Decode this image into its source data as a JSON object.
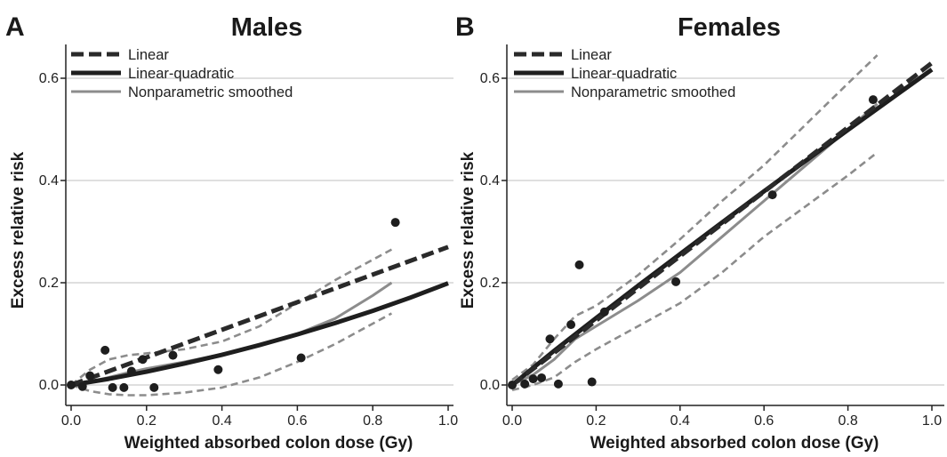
{
  "panels": [
    {
      "letter": "A",
      "title": "Males",
      "xlabel": "Weighted absorbed colon dose (Gy)",
      "ylabel": "Excess relative risk",
      "legend": [
        "Linear",
        "Linear-quadratic",
        "Nonparametric smoothed"
      ]
    },
    {
      "letter": "B",
      "title": "Females",
      "xlabel": "Weighted absorbed colon dose (Gy)",
      "ylabel": "Excess relative risk",
      "legend": [
        "Linear",
        "Linear-quadratic",
        "Nonparametric smoothed"
      ]
    }
  ],
  "colors": {
    "linear": "#2a2a2a",
    "linear_quadratic": "#1e1e1e",
    "smoothed": "#8c8c8c",
    "confidence_band": "#8c8c8c",
    "points": "#1e1e1e",
    "gridline": "#cccccc"
  },
  "chart_data": [
    {
      "type": "line",
      "title": "Males",
      "xlabel": "Weighted absorbed colon dose (Gy)",
      "ylabel": "Excess relative risk",
      "xlim": [
        -0.01,
        1.0
      ],
      "ylim": [
        -0.04,
        0.66
      ],
      "xticks": [
        "0.0",
        "0.2",
        "0.4",
        "0.6",
        "0.8",
        "1.0"
      ],
      "yticks": [
        "0.0",
        "0.2",
        "0.4",
        "0.6"
      ],
      "grid": "horizontal",
      "legend_position": "top-left",
      "points": [
        [
          0.0,
          0.0
        ],
        [
          0.03,
          -0.003
        ],
        [
          0.05,
          0.018
        ],
        [
          0.09,
          0.068
        ],
        [
          0.11,
          -0.005
        ],
        [
          0.14,
          -0.005
        ],
        [
          0.16,
          0.027
        ],
        [
          0.19,
          0.05
        ],
        [
          0.22,
          -0.005
        ],
        [
          0.27,
          0.058
        ],
        [
          0.39,
          0.03
        ],
        [
          0.61,
          0.053
        ],
        [
          0.86,
          0.318
        ]
      ],
      "series": [
        {
          "name": "Linear",
          "style": "dashed-thick",
          "x": [
            0.0,
            1.0
          ],
          "y": [
            0.0,
            0.27
          ]
        },
        {
          "name": "Linear-quadratic",
          "style": "solid-thick",
          "x": [
            0.0,
            0.1,
            0.2,
            0.3,
            0.4,
            0.5,
            0.6,
            0.7,
            0.8,
            0.9,
            1.0
          ],
          "y": [
            0.0,
            0.012,
            0.026,
            0.042,
            0.059,
            0.078,
            0.099,
            0.121,
            0.145,
            0.171,
            0.199
          ]
        },
        {
          "name": "Nonparametric smoothed",
          "style": "solid-gray",
          "x": [
            0.0,
            0.05,
            0.1,
            0.15,
            0.2,
            0.3,
            0.4,
            0.5,
            0.6,
            0.7,
            0.8,
            0.85
          ],
          "y": [
            0.0,
            0.006,
            0.015,
            0.024,
            0.032,
            0.045,
            0.06,
            0.078,
            0.1,
            0.13,
            0.175,
            0.2
          ]
        },
        {
          "name": "",
          "style": "dashed-gray",
          "x": [
            0.0,
            0.05,
            0.1,
            0.15,
            0.2,
            0.3,
            0.4,
            0.5,
            0.6,
            0.7,
            0.8,
            0.85
          ],
          "y": [
            0.0,
            0.03,
            0.05,
            0.058,
            0.062,
            0.07,
            0.085,
            0.115,
            0.16,
            0.205,
            0.245,
            0.265
          ]
        },
        {
          "name": "",
          "style": "dashed-gray",
          "x": [
            0.0,
            0.05,
            0.1,
            0.15,
            0.2,
            0.3,
            0.4,
            0.5,
            0.6,
            0.7,
            0.8,
            0.85
          ],
          "y": [
            0.0,
            -0.012,
            -0.018,
            -0.02,
            -0.02,
            -0.015,
            -0.005,
            0.015,
            0.045,
            0.08,
            0.12,
            0.14
          ]
        }
      ]
    },
    {
      "type": "line",
      "title": "Females",
      "xlabel": "Weighted absorbed colon dose (Gy)",
      "ylabel": "Excess relative risk",
      "xlim": [
        -0.01,
        1.0
      ],
      "ylim": [
        -0.04,
        0.66
      ],
      "xticks": [
        "0.0",
        "0.2",
        "0.4",
        "0.6",
        "0.8",
        "1.0"
      ],
      "yticks": [
        "0.0",
        "0.2",
        "0.4",
        "0.6"
      ],
      "grid": "horizontal",
      "legend_position": "top-left",
      "points": [
        [
          0.0,
          0.0
        ],
        [
          0.03,
          0.002
        ],
        [
          0.05,
          0.012
        ],
        [
          0.07,
          0.014
        ],
        [
          0.09,
          0.09
        ],
        [
          0.11,
          0.002
        ],
        [
          0.14,
          0.118
        ],
        [
          0.16,
          0.235
        ],
        [
          0.19,
          0.006
        ],
        [
          0.22,
          0.143
        ],
        [
          0.39,
          0.202
        ],
        [
          0.62,
          0.372
        ],
        [
          0.86,
          0.558
        ]
      ],
      "series": [
        {
          "name": "Linear",
          "style": "dashed-thick",
          "x": [
            0.0,
            1.0
          ],
          "y": [
            0.0,
            0.63
          ]
        },
        {
          "name": "Linear-quadratic",
          "style": "solid-thick",
          "x": [
            0.0,
            0.1,
            0.2,
            0.3,
            0.4,
            0.5,
            0.6,
            0.7,
            0.8,
            0.9,
            1.0
          ],
          "y": [
            0.0,
            0.067,
            0.131,
            0.194,
            0.256,
            0.318,
            0.379,
            0.439,
            0.499,
            0.558,
            0.617
          ]
        },
        {
          "name": "Nonparametric smoothed",
          "style": "solid-gray",
          "x": [
            0.0,
            0.05,
            0.1,
            0.15,
            0.2,
            0.3,
            0.4,
            0.5,
            0.6,
            0.7,
            0.8,
            0.87
          ],
          "y": [
            0.0,
            0.02,
            0.05,
            0.09,
            0.115,
            0.165,
            0.22,
            0.29,
            0.36,
            0.43,
            0.5,
            0.55
          ]
        },
        {
          "name": "",
          "style": "dashed-gray",
          "x": [
            0.0,
            0.05,
            0.1,
            0.15,
            0.2,
            0.3,
            0.4,
            0.5,
            0.6,
            0.7,
            0.8,
            0.87
          ],
          "y": [
            0.01,
            0.04,
            0.09,
            0.135,
            0.155,
            0.215,
            0.285,
            0.36,
            0.43,
            0.51,
            0.59,
            0.645
          ]
        },
        {
          "name": "",
          "style": "dashed-gray",
          "x": [
            0.0,
            0.05,
            0.1,
            0.15,
            0.2,
            0.3,
            0.4,
            0.5,
            0.6,
            0.7,
            0.8,
            0.87
          ],
          "y": [
            -0.01,
            0.0,
            0.015,
            0.045,
            0.07,
            0.115,
            0.16,
            0.22,
            0.29,
            0.35,
            0.41,
            0.455
          ]
        }
      ]
    }
  ]
}
